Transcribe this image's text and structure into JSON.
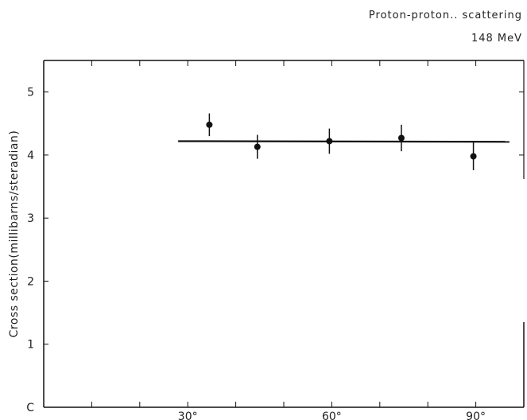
{
  "chart_data": {
    "type": "scatter",
    "title": "Proton-proton.. scattering",
    "subtitle": "148 MeV",
    "xlabel": "",
    "ylabel": "Cross section(millibarns/steradian)",
    "xlim": [
      0,
      100
    ],
    "ylim": [
      0,
      5.5
    ],
    "x_ticks": [
      30,
      60,
      90
    ],
    "x_tick_labels": [
      "30°",
      "60°",
      "90°"
    ],
    "y_ticks": [
      0,
      1,
      2,
      3,
      4,
      5
    ],
    "y_tick_labels": [
      "C",
      "1",
      "2",
      "3",
      "4",
      "5"
    ],
    "grid": false,
    "series": [
      {
        "x": [
          34.5,
          44.5,
          59.5,
          74.5,
          89.5
        ],
        "y": [
          4.48,
          4.13,
          4.22,
          4.27,
          3.98
        ],
        "yerr": [
          0.18,
          0.19,
          0.2,
          0.21,
          0.22
        ]
      }
    ],
    "fit_line": {
      "x": [
        28,
        97
      ],
      "y": [
        4.22,
        4.21
      ]
    }
  }
}
